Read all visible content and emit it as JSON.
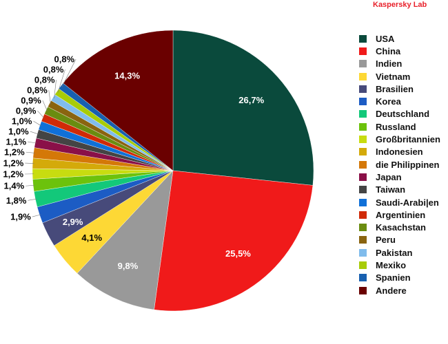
{
  "brand": "Kaspersky Lab",
  "chart_data": {
    "type": "pie",
    "start": "top",
    "direction": "clockwise",
    "legend_placement": "right",
    "slices": [
      {
        "label": "USA",
        "value": 26.7,
        "display": "26,7%",
        "color": "#0a4a3c"
      },
      {
        "label": "China",
        "value": 25.5,
        "display": "25,5%",
        "color": "#f01a1a"
      },
      {
        "label": "Indien",
        "value": 9.8,
        "display": "9,8%",
        "color": "#999999"
      },
      {
        "label": "Vietnam",
        "value": 4.1,
        "display": "4,1%",
        "color": "#fdd835"
      },
      {
        "label": "Brasilien",
        "value": 2.9,
        "display": "2,9%",
        "color": "#474a7a"
      },
      {
        "label": "Korea",
        "value": 1.9,
        "display": "1,9%",
        "color": "#1c5cc4"
      },
      {
        "label": "Deutschland",
        "value": 1.8,
        "display": "1,8%",
        "color": "#13c87a"
      },
      {
        "label": "Russland",
        "value": 1.4,
        "display": "1,4%",
        "color": "#6cc20c"
      },
      {
        "label": "Großbritannien",
        "value": 1.2,
        "display": "1,2%",
        "color": "#c8dc10"
      },
      {
        "label": "Indonesien",
        "value": 1.2,
        "display": "1,2%",
        "color": "#d4aa0a"
      },
      {
        "label": "die Philippinen",
        "value": 1.2,
        "display": "1,2%",
        "color": "#d47808"
      },
      {
        "label": "Japan",
        "value": 1.1,
        "display": "1,1%",
        "color": "#8a1048"
      },
      {
        "label": "Taiwan",
        "value": 1.0,
        "display": "1,0%",
        "color": "#444444"
      },
      {
        "label": "Saudi-Arabi|en",
        "value": 1.0,
        "display": "1,0%",
        "color": "#1070d8"
      },
      {
        "label": "Argentinien",
        "value": 0.9,
        "display": "0,9%",
        "color": "#d02a08"
      },
      {
        "label": "Kasachstan",
        "value": 0.9,
        "display": "0,9%",
        "color": "#6a8c10"
      },
      {
        "label": "Peru",
        "value": 0.8,
        "display": "0,8%",
        "color": "#8a6410"
      },
      {
        "label": "Pakistan",
        "value": 0.8,
        "display": "0,8%",
        "color": "#80bcec"
      },
      {
        "label": "Mexiko",
        "value": 0.8,
        "display": "0,8%",
        "color": "#a8cc08"
      },
      {
        "label": "Spanien",
        "value": 0.8,
        "display": "0,8%",
        "color": "#1860b0"
      },
      {
        "label": "Andere",
        "value": 14.3,
        "display": "14,3%",
        "color": "#6a0000"
      }
    ],
    "label_colors": {
      "light": "#ffffff",
      "dark": "#000000"
    }
  }
}
